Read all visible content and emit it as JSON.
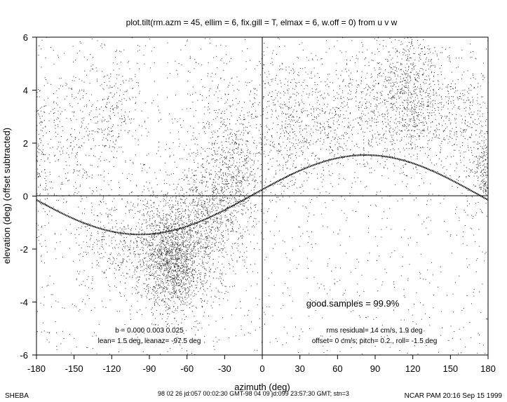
{
  "chart_data": {
    "type": "scatter",
    "title": "plot.tilt(rm.azm = 45, ellim = 6, fix.gill = T, elmax = 6, w.off = 0) from u v w",
    "xlabel": "azimuth (deg)",
    "ylabel": "elevation (deg)  (offset subtracted)",
    "xlim": [
      -180,
      180
    ],
    "ylim": [
      -6,
      6
    ],
    "xticks": [
      -180,
      -150,
      -120,
      -90,
      -60,
      -30,
      0,
      30,
      60,
      90,
      120,
      150,
      180
    ],
    "yticks": [
      -6,
      -4,
      -2,
      0,
      2,
      4,
      6
    ],
    "grid": false,
    "zero_lines": true,
    "fit_curve": {
      "description": "sinusoidal tilt fit",
      "amplitude": 1.5,
      "peak_azimuth": 82.5,
      "x": [
        -180,
        -150,
        -120,
        -97.5,
        -75,
        -45,
        -30,
        0,
        30,
        60,
        82.5,
        105,
        135,
        150,
        180
      ],
      "y": [
        -0.2,
        -0.95,
        -1.4,
        -1.5,
        -1.42,
        -0.87,
        -0.5,
        0.2,
        0.87,
        1.35,
        1.5,
        1.42,
        0.86,
        0.56,
        -0.2
      ]
    },
    "scatter_clusters": [
      {
        "x": -178,
        "y": 1.8,
        "sx": 4,
        "sy": 1.5,
        "n": 150
      },
      {
        "x": -150,
        "y": 2.0,
        "sx": 15,
        "sy": 1.6,
        "n": 260
      },
      {
        "x": -120,
        "y": 3.2,
        "sx": 10,
        "sy": 0.9,
        "n": 180
      },
      {
        "x": -120,
        "y": -1.8,
        "sx": 14,
        "sy": 1.0,
        "n": 260
      },
      {
        "x": -90,
        "y": -1.8,
        "sx": 10,
        "sy": 1.2,
        "n": 380
      },
      {
        "x": -72,
        "y": -2.5,
        "sx": 10,
        "sy": 1.0,
        "n": 1150
      },
      {
        "x": -60,
        "y": -1.8,
        "sx": 12,
        "sy": 1.3,
        "n": 500
      },
      {
        "x": -45,
        "y": -1.0,
        "sx": 10,
        "sy": 1.2,
        "n": 480
      },
      {
        "x": -22,
        "y": 0.5,
        "sx": 10,
        "sy": 1.4,
        "n": 620
      },
      {
        "x": -35,
        "y": 2.5,
        "sx": 15,
        "sy": 1.5,
        "n": 200
      },
      {
        "x": 15,
        "y": 2.6,
        "sx": 15,
        "sy": 1.5,
        "n": 420
      },
      {
        "x": 55,
        "y": 2.7,
        "sx": 20,
        "sy": 1.4,
        "n": 450
      },
      {
        "x": 95,
        "y": 3.4,
        "sx": 15,
        "sy": 1.2,
        "n": 380
      },
      {
        "x": 118,
        "y": 3.9,
        "sx": 10,
        "sy": 1.3,
        "n": 520
      },
      {
        "x": 140,
        "y": 3.2,
        "sx": 15,
        "sy": 1.3,
        "n": 300
      },
      {
        "x": 165,
        "y": 2.3,
        "sx": 10,
        "sy": 1.4,
        "n": 220
      },
      {
        "x": 176,
        "y": 1.0,
        "sx": 3,
        "sy": 0.7,
        "n": 160
      }
    ],
    "background_noise_points": 1500,
    "annotations": {
      "good_samples": "good.samples = 99.9%",
      "coef": "b = 0.000 0.003 0.025",
      "lean": "lean= 1.5 deg, leanaz= -97.5 deg",
      "rms": "rms residual= 14 cm/s, 1.9 deg",
      "offset": "offset= 0 cm/s; pitch=  0.2., roll= -1.5 deg"
    }
  },
  "footer": {
    "left": "SHEBA",
    "center": "98 02 26 jd:057 00:02:30 GMT-98 04 09 jd:099 23:57:30 GMT; stn=3",
    "right": "NCAR PAM 20:16 Sep 15 1999"
  }
}
